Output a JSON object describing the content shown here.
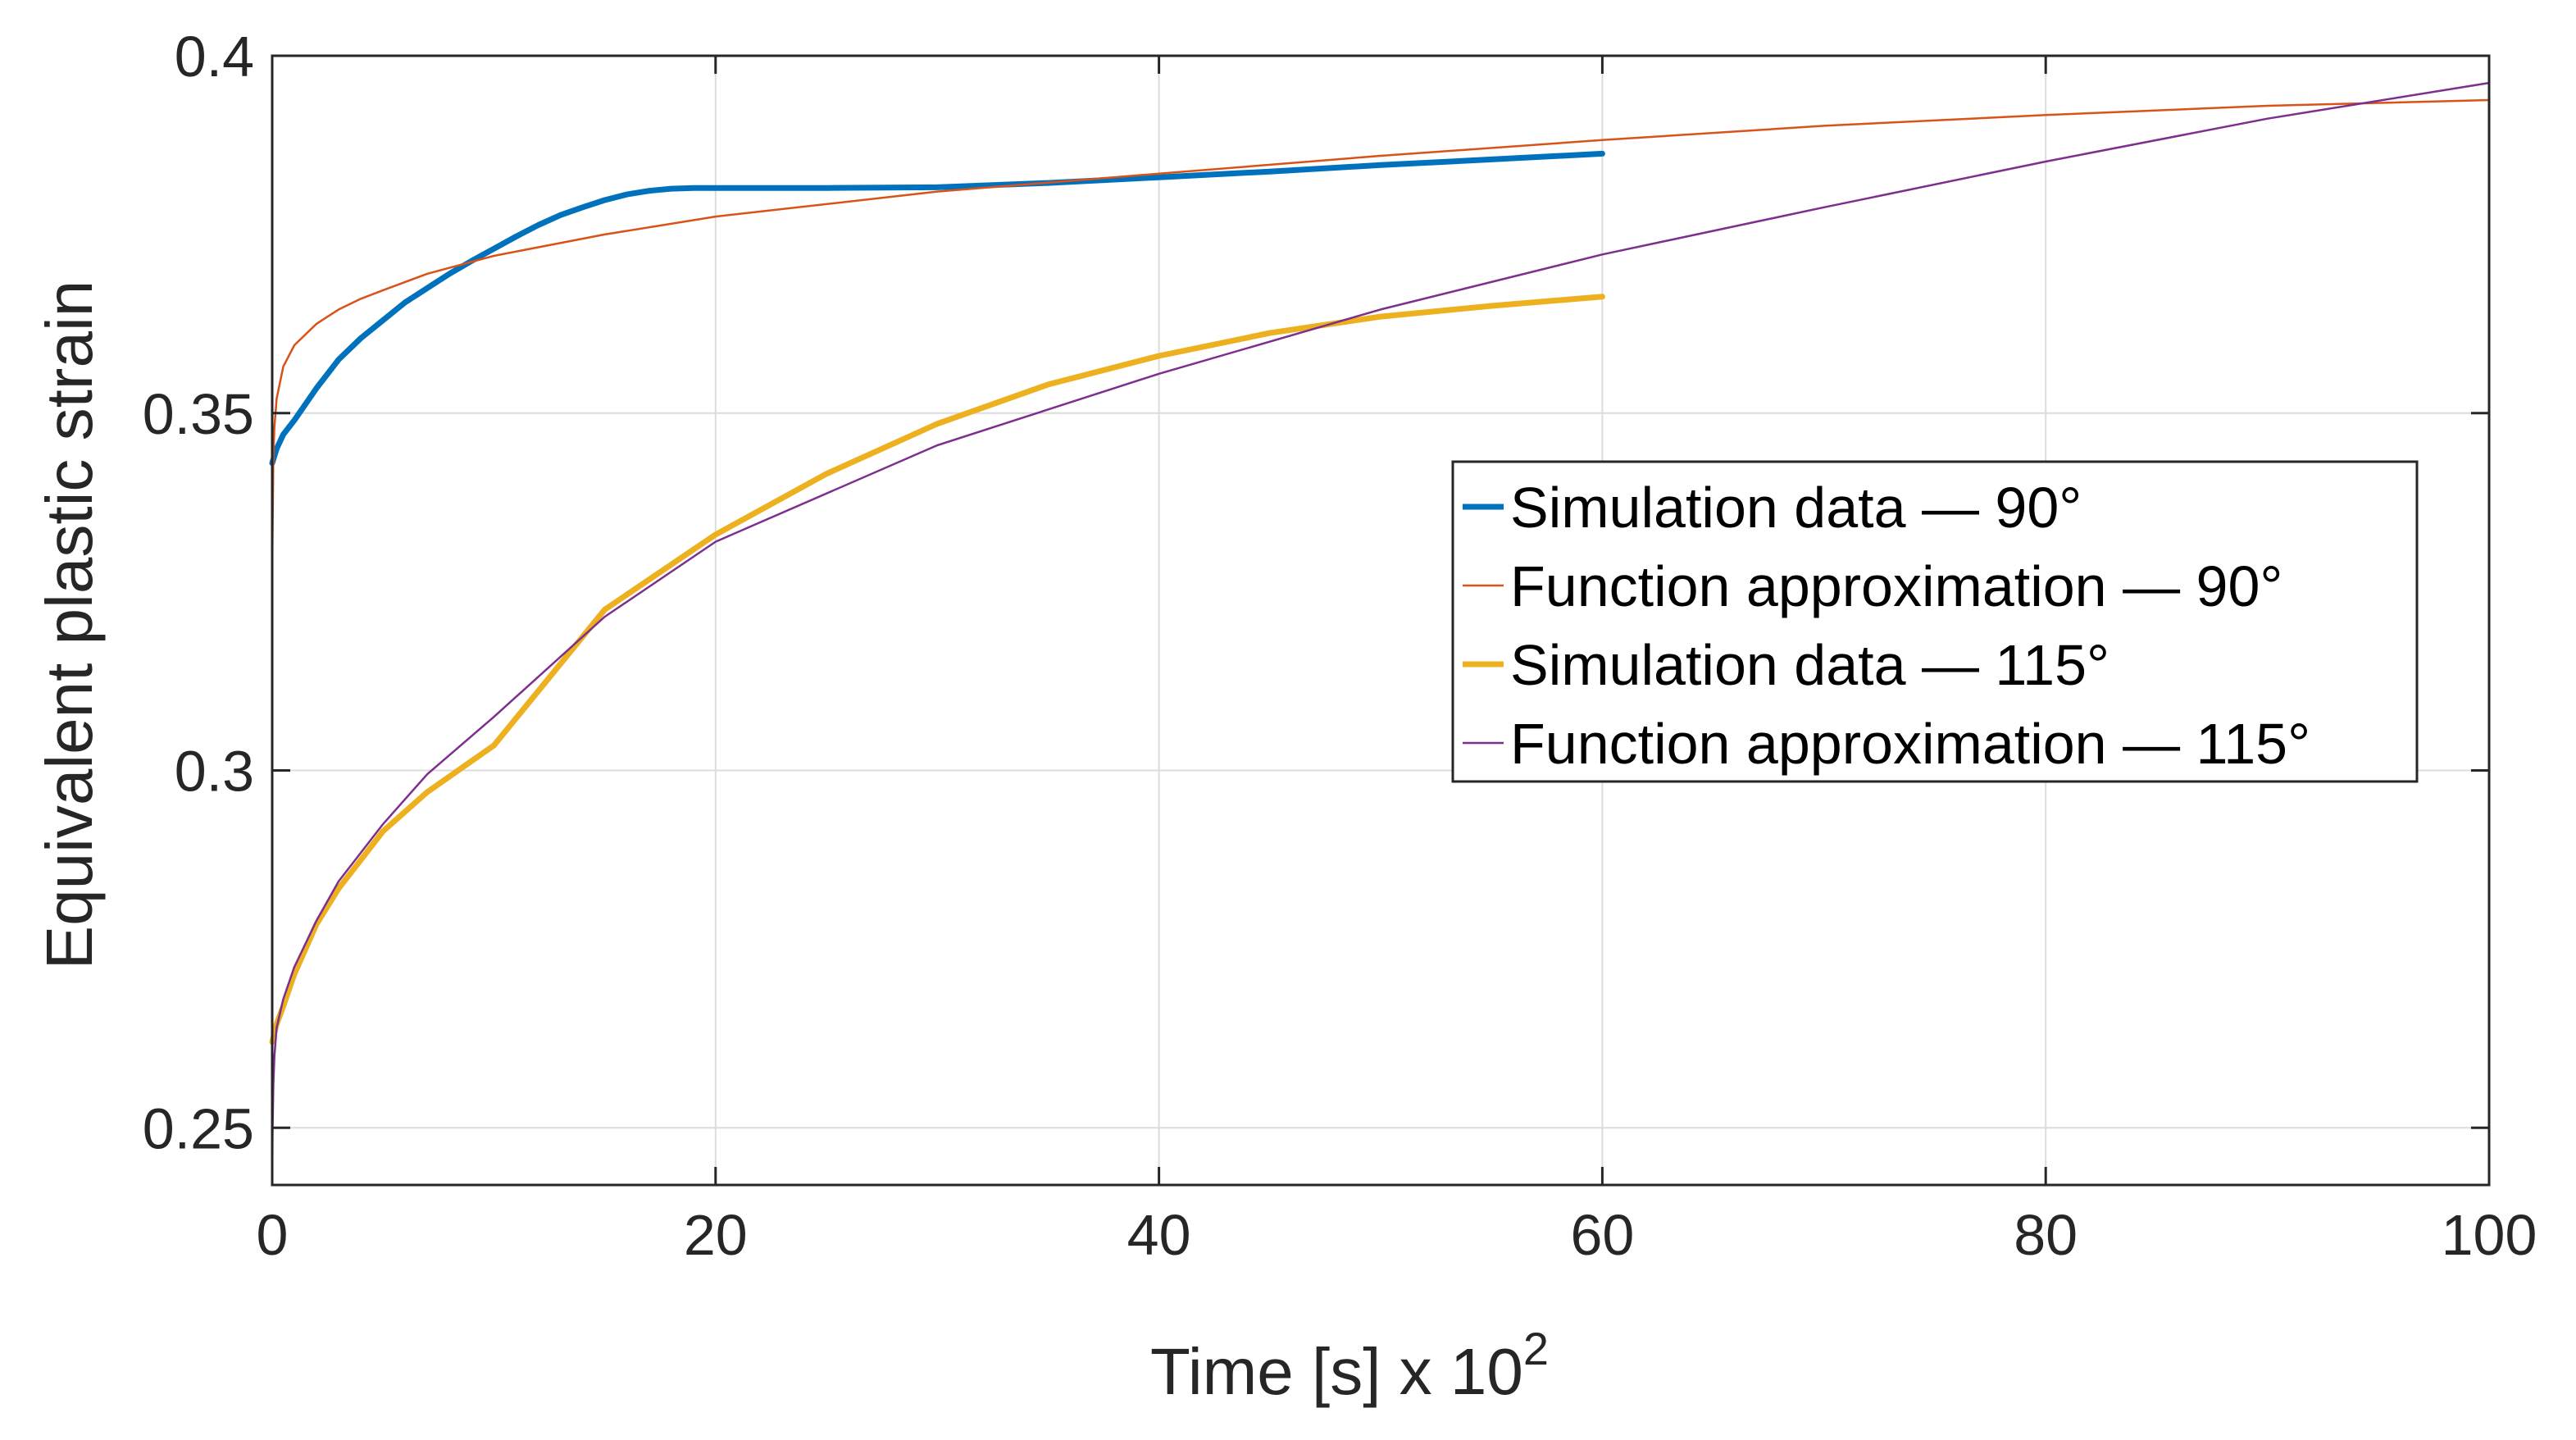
{
  "chart_data": {
    "type": "line",
    "title": "",
    "xlabel": "Time [s] x 10",
    "xlabel_exponent": "2",
    "ylabel": "Equivalent plastic strain",
    "xlim": [
      0,
      100
    ],
    "ylim": [
      0.242,
      0.4
    ],
    "xticks": [
      0,
      20,
      40,
      60,
      80,
      100
    ],
    "xtick_labels": [
      "0",
      "20",
      "40",
      "60",
      "80",
      "100"
    ],
    "yticks": [
      0.25,
      0.3,
      0.35,
      0.4
    ],
    "ytick_labels": [
      "0.25",
      "0.3",
      "0.35",
      "0.4"
    ],
    "grid": true,
    "legend_position": "center-right",
    "series": [
      {
        "name": "Simulation data — 90°",
        "color": "#0072BD",
        "style": "thick",
        "x": [
          0,
          0.2,
          0.5,
          1,
          2,
          3,
          4,
          5,
          6,
          7,
          8,
          9,
          10,
          11,
          12,
          13,
          14,
          15,
          16,
          17,
          18,
          19,
          20,
          25,
          30,
          35,
          40,
          45,
          50,
          55,
          60
        ],
        "y": [
          0.343,
          0.345,
          0.347,
          0.349,
          0.3535,
          0.3575,
          0.3605,
          0.363,
          0.3655,
          0.3675,
          0.3695,
          0.3713,
          0.373,
          0.3747,
          0.3763,
          0.3777,
          0.3788,
          0.3798,
          0.3806,
          0.3811,
          0.3814,
          0.3815,
          0.3815,
          0.3815,
          0.3816,
          0.3822,
          0.383,
          0.3838,
          0.3847,
          0.3855,
          0.3863
        ]
      },
      {
        "name": "Function approximation — 90°",
        "color": "#D95319",
        "style": "thin",
        "x": [
          0,
          0.05,
          0.1,
          0.2,
          0.5,
          1,
          2,
          3,
          4,
          5,
          7,
          10,
          15,
          20,
          30,
          40,
          50,
          60,
          70,
          80,
          90,
          100
        ],
        "y": [
          0.328,
          0.344,
          0.348,
          0.352,
          0.3565,
          0.3595,
          0.3625,
          0.3645,
          0.366,
          0.3672,
          0.3695,
          0.372,
          0.375,
          0.3775,
          0.381,
          0.3835,
          0.386,
          0.3882,
          0.3902,
          0.3917,
          0.393,
          0.3938
        ]
      },
      {
        "name": "Simulation data — 115°",
        "color": "#EDB120",
        "style": "thick",
        "x": [
          0,
          0.2,
          0.5,
          1,
          2,
          3,
          4,
          5,
          7,
          10,
          15,
          20,
          25,
          30,
          35,
          40,
          45,
          50,
          55,
          60
        ],
        "y": [
          0.262,
          0.2645,
          0.267,
          0.2715,
          0.2785,
          0.2835,
          0.2875,
          0.2915,
          0.297,
          0.3035,
          0.3225,
          0.333,
          0.3415,
          0.3485,
          0.354,
          0.358,
          0.3612,
          0.3635,
          0.365,
          0.3663
        ]
      },
      {
        "name": "Function approximation — 115°",
        "color": "#7E2F8E",
        "style": "thin",
        "x": [
          0,
          0.02,
          0.05,
          0.1,
          0.2,
          0.5,
          1,
          2,
          3,
          5,
          7,
          10,
          15,
          20,
          30,
          40,
          50,
          60,
          70,
          80,
          90,
          100
        ],
        "y": [
          0.242,
          0.25,
          0.256,
          0.26,
          0.264,
          0.268,
          0.2725,
          0.279,
          0.2845,
          0.2925,
          0.2995,
          0.3075,
          0.3215,
          0.332,
          0.3455,
          0.3555,
          0.3645,
          0.3722,
          0.3788,
          0.3852,
          0.3912,
          0.3962
        ]
      }
    ]
  }
}
